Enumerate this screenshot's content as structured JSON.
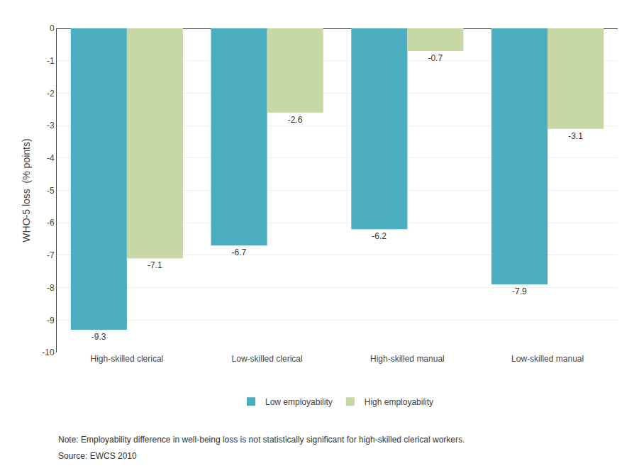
{
  "chart_data": {
    "type": "bar",
    "categories": [
      "High-skilled clerical",
      "Low-skilled clerical",
      "High-skilled manual",
      "Low-skilled manual"
    ],
    "series": [
      {
        "name": "Low employability",
        "color": "#4BAEC0",
        "values": [
          -9.3,
          -6.7,
          -6.2,
          -7.9
        ]
      },
      {
        "name": "High employability",
        "color": "#C8D8A5",
        "values": [
          -7.1,
          -2.6,
          -0.7,
          -3.1
        ]
      }
    ],
    "ylabel": "WHO-5 loss  (% points)",
    "ylim": [
      -10,
      0
    ],
    "yticks": [
      0,
      -1,
      -2,
      -3,
      -4,
      -5,
      -6,
      -7,
      -8,
      -9,
      -10
    ],
    "grid": true,
    "legend": "bottom",
    "data_labels": true,
    "annotations": [
      "Note: Employability difference in well-being loss is not statistically significant for high-skilled clerical workers.",
      "Source: EWCS 2010"
    ]
  }
}
